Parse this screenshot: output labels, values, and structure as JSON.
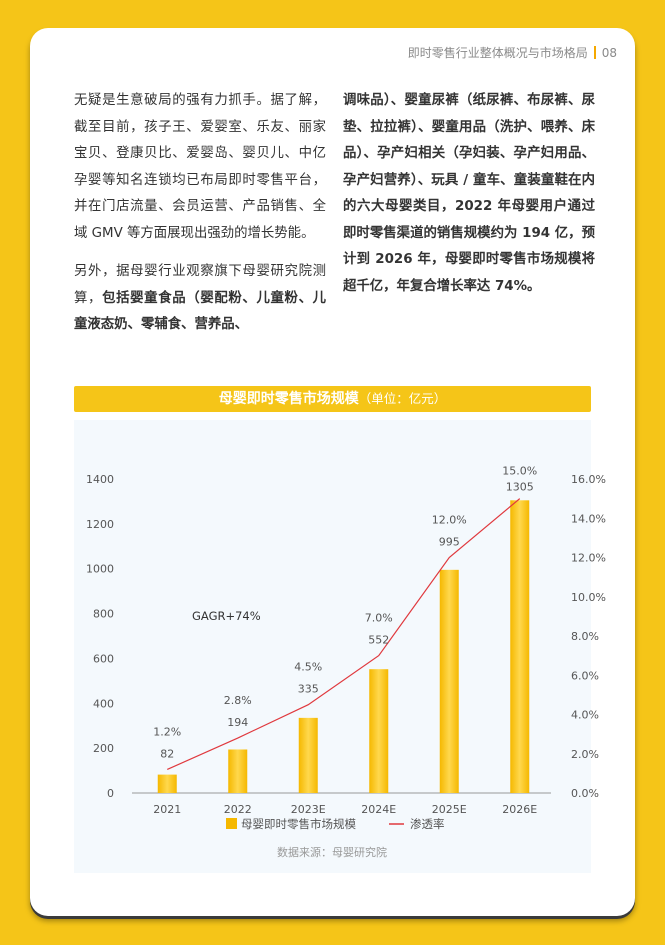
{
  "header": {
    "section": "即时零售行业整体概况与市场格局",
    "page_number": "08"
  },
  "article": {
    "para1": "无疑是生意破局的强有力抓手。据了解，截至目前，孩子王、爱婴室、乐友、丽家宝贝、登康贝比、爱婴岛、婴贝儿、中亿孕婴等知名连锁均已布局即时零售平台，并在门店流量、会员运营、产品销售、全域 GMV 等方面展现出强劲的增长势能。",
    "para2_plain": "另外，据母婴行业观察旗下母婴研究院测算，",
    "para2_bold": "包括婴童食品（婴配粉、儿童粉、儿童液态奶、零辅食、营养品、",
    "para3": "调味品）、婴童尿裤（纸尿裤、布尿裤、尿垫、拉拉裤）、婴童用品（洗护、喂养、床品）、孕产妇相关（孕妇装、孕产妇用品、孕产妇营养）、玩具 / 童车、童装童鞋在内的六大母婴类目，2022 年母婴用户通过即时零售渠道的销售规模约为 194 亿，预计到 2026 年，母婴即时零售市场规模将超千亿，年复合增长率达 74%。"
  },
  "chart_banner": {
    "title": "母婴即时零售市场规模",
    "unit": "（单位：亿元）"
  },
  "chart_data": {
    "type": "bar",
    "categories": [
      "2021",
      "2022",
      "2023E",
      "2024E",
      "2025E",
      "2026E"
    ],
    "series": [
      {
        "name": "母婴即时零售市场规模",
        "type": "bar",
        "axis": "left",
        "values": [
          82,
          194,
          335,
          552,
          995,
          1305
        ]
      },
      {
        "name": "渗透率",
        "type": "line",
        "axis": "right",
        "values": [
          0.012,
          0.028,
          0.045,
          0.07,
          0.12,
          0.15
        ],
        "labels": [
          "1.2%",
          "2.8%",
          "4.5%",
          "7.0%",
          "12.0%",
          "15.0%"
        ]
      }
    ],
    "bar_labels": [
      "82",
      "194",
      "335",
      "552",
      "995",
      "1305"
    ],
    "ylim": [
      0,
      1400
    ],
    "yticks": [
      "0",
      "200",
      "400",
      "600",
      "800",
      "1000",
      "1200",
      "1400"
    ],
    "y2lim": [
      0,
      0.16
    ],
    "y2ticks": [
      "0.0%",
      "2.0%",
      "4.0%",
      "6.0%",
      "8.0%",
      "10.0%",
      "12.0%",
      "14.0%",
      "16.0%"
    ],
    "annotation": "GAGR+74%",
    "source": "数据来源：母婴研究院",
    "legend_placement": "bottom",
    "colors": {
      "bar": "#f5b800",
      "bar_light": "#ffd84d",
      "line": "#e0393e"
    }
  }
}
